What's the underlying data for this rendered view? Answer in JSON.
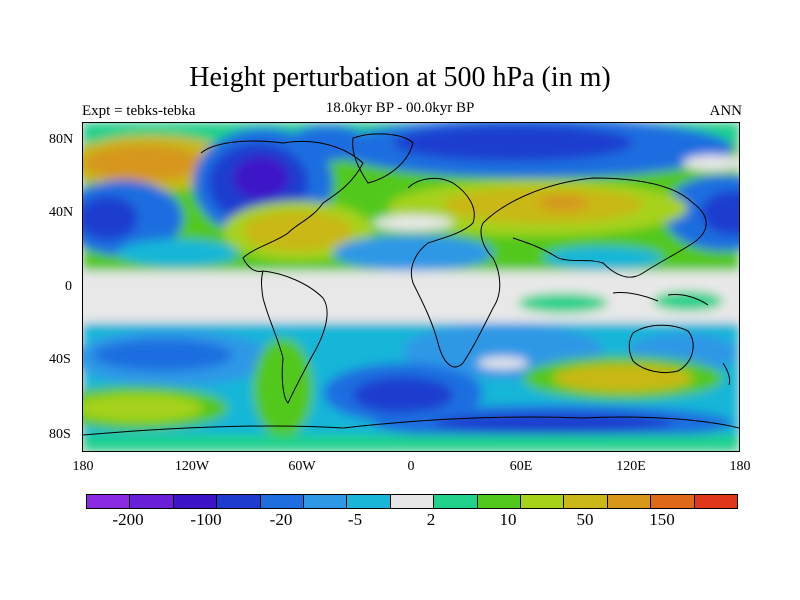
{
  "title": "Height perturbation at 500 hPa (in m)",
  "left_label": "Expt = tebks-tebka",
  "center_label": "18.0kyr BP - 00.0kyr BP",
  "right_label": "ANN",
  "lat_ticks": [
    "80N",
    "40N",
    "0",
    "40S",
    "80S"
  ],
  "lon_ticks": [
    "180",
    "120W",
    "60W",
    "0",
    "60E",
    "120E",
    "180"
  ],
  "colorbar": {
    "colors": [
      "#8a2be2",
      "#6a1fd8",
      "#3e14c8",
      "#1e3ccf",
      "#1e6ee0",
      "#2f98e6",
      "#19b6d8",
      "#e6e6e6",
      "#1fd18a",
      "#52c81f",
      "#a6d21a",
      "#c9b817",
      "#d6971a",
      "#de6a17",
      "#e0371a"
    ],
    "labels": [
      "-200",
      "-100",
      "-20",
      "-5",
      "2",
      "10",
      "50",
      "150"
    ]
  }
}
